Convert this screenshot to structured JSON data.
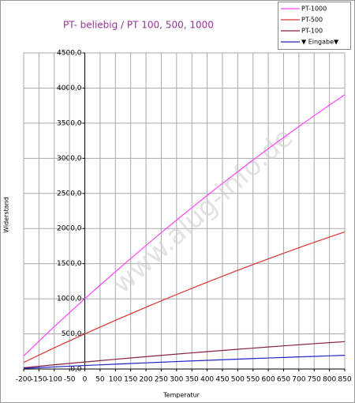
{
  "chart_data": {
    "type": "line",
    "title": "PT- beliebig  /  PT 100, 500, 1000",
    "x_label": "Temperatur",
    "y_label": "Widerstand",
    "watermark": "www.alug-info.de",
    "x": [
      -200,
      -150,
      -100,
      -50,
      0,
      50,
      100,
      150,
      200,
      250,
      300,
      350,
      400,
      450,
      500,
      550,
      600,
      650,
      700,
      750,
      800,
      850
    ],
    "series": [
      {
        "name": "PT-1000",
        "color": "#ff44ff",
        "values": [
          185.2,
          397.2,
          602.6,
          803.1,
          1000,
          1194.0,
          1385.1,
          1573.3,
          1758.6,
          1941.0,
          2120.5,
          2297.2,
          2470.9,
          2641.8,
          2809.8,
          2974.9,
          3137.1,
          3296.4,
          3452.8,
          3606.4,
          3757.0,
          3904.8
        ]
      },
      {
        "name": "PT-500",
        "color": "#dd3333",
        "values": [
          92.6,
          198.6,
          301.3,
          401.5,
          500,
          597.0,
          692.5,
          786.6,
          879.3,
          970.5,
          1060.3,
          1148.6,
          1235.5,
          1320.9,
          1404.9,
          1487.4,
          1568.5,
          1648.2,
          1726.4,
          1803.2,
          1878.5,
          1952.4
        ]
      },
      {
        "name": "PT-100",
        "color": "#882244",
        "values": [
          18.5,
          39.7,
          60.3,
          80.3,
          100,
          119.4,
          138.5,
          157.3,
          175.9,
          194.1,
          212.1,
          229.7,
          247.1,
          264.2,
          281.0,
          297.5,
          313.7,
          329.6,
          345.3,
          360.6,
          375.7,
          390.5
        ]
      },
      {
        "name": "▼ Eingabe▼",
        "color": "#2222cc",
        "values": [
          9.3,
          19.9,
          30.1,
          40.2,
          50,
          59.7,
          69.3,
          78.7,
          87.9,
          97.1,
          106.0,
          114.9,
          123.5,
          132.1,
          140.5,
          148.7,
          156.9,
          164.8,
          172.6,
          180.3,
          187.9,
          195.2
        ]
      }
    ],
    "xlim": [
      -200,
      850
    ],
    "xticks": [
      -200,
      -150,
      -100,
      -50,
      0,
      50,
      100,
      150,
      200,
      250,
      300,
      350,
      400,
      450,
      500,
      550,
      600,
      650,
      700,
      750,
      800,
      850
    ],
    "ylim": [
      0,
      4500
    ],
    "yticks": [
      {
        "value": 0,
        "label": "0,0"
      },
      {
        "value": 500,
        "label": "500,0"
      },
      {
        "value": 1000,
        "label": "1000,0"
      },
      {
        "value": 1500,
        "label": "1500,0"
      },
      {
        "value": 2000,
        "label": "2000,0"
      },
      {
        "value": 2500,
        "label": "2500,0"
      },
      {
        "value": 3000,
        "label": "3000,0"
      },
      {
        "value": 3500,
        "label": "3500,0"
      },
      {
        "value": 4000,
        "label": "4000,0"
      },
      {
        "value": 4500,
        "label": "4500,0"
      }
    ],
    "grid": true,
    "legend": "top-right"
  }
}
